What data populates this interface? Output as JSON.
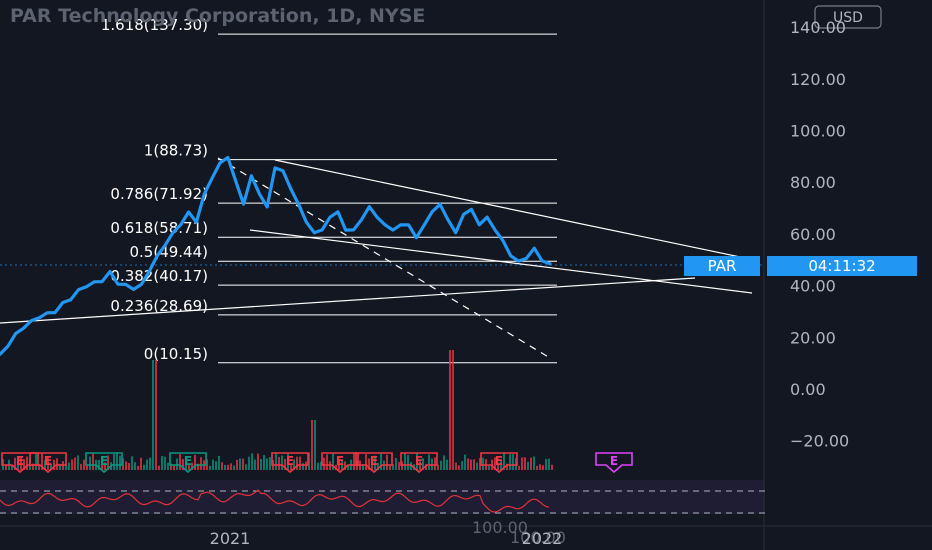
{
  "header": {
    "title": "PAR Technology Corporation, 1D, NYSE",
    "currency": "USD"
  },
  "price_scale": {
    "labels": [
      "140.00",
      "120.00",
      "100.00",
      "80.00",
      "60.00",
      "40.00",
      "20.00",
      "0.00",
      "−20.00"
    ],
    "rsi_label": "100.00"
  },
  "time_scale": {
    "labels": [
      "2021",
      "2022"
    ]
  },
  "symbol_tag": {
    "symbol": "PAR",
    "countdown": "04:11:32"
  },
  "fib_levels": [
    {
      "label": "1.618(137.30)",
      "value": 137.3
    },
    {
      "label": "1(88.73)",
      "value": 88.73
    },
    {
      "label": "0.786(71.92)",
      "value": 71.92
    },
    {
      "label": "0.618(58.71)",
      "value": 58.71
    },
    {
      "label": "0.5(49.44)",
      "value": 49.44
    },
    {
      "label": "0.382(40.17)",
      "value": 40.17
    },
    {
      "label": "0.236(28.69)",
      "value": 28.69
    },
    {
      "label": "0(10.15)",
      "value": 10.15
    }
  ],
  "earnings_markers": [
    "E",
    "E",
    "E",
    "E",
    "E",
    "E",
    "E",
    "E",
    "E",
    "E"
  ],
  "colors": {
    "background": "#131722",
    "price_line": "#2196f3",
    "grid_text": "#b2b5be",
    "fib_line": "#ffffff",
    "earnings_red": "#f23645",
    "earnings_green": "#089981",
    "earnings_purple": "#e040fb",
    "rsi_line": "#e0323c",
    "rsi_band": "#2a2342"
  },
  "chart_data": {
    "type": "line",
    "title": "PAR Technology Corporation, 1D, NYSE",
    "ylim": [
      -25,
      145
    ],
    "x_axis": [
      "2021",
      "2022"
    ],
    "series": [
      {
        "values": [
          13,
          17,
          21,
          24,
          26,
          28,
          29,
          30,
          33,
          35,
          38,
          40,
          41,
          42,
          45,
          41,
          40,
          39,
          40,
          46,
          51,
          56,
          60,
          64,
          68,
          65,
          75,
          82,
          87,
          90,
          80,
          72,
          82,
          76,
          70,
          86,
          84,
          78,
          71,
          65,
          60,
          62,
          66,
          69,
          61,
          62,
          65,
          71,
          66,
          64,
          61,
          64,
          63,
          59,
          63,
          69,
          71,
          66,
          60,
          68,
          69,
          64,
          66,
          62,
          57,
          52,
          49,
          51,
          54,
          50,
          48
        ]
      }
    ]
  }
}
